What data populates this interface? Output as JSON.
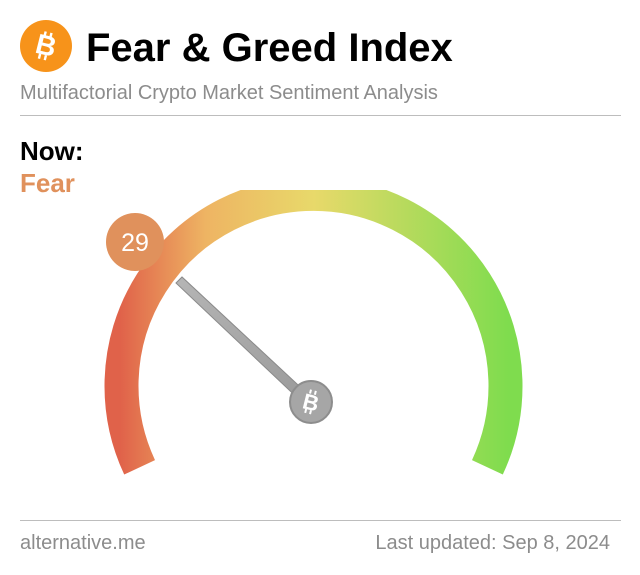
{
  "header": {
    "title": "Fear & Greed Index",
    "subtitle": "Multifactorial Crypto Market Sentiment Analysis",
    "logo_icon": "bitcoin-icon",
    "logo_color": "#f7931a"
  },
  "now": {
    "label": "Now:",
    "classification": "Fear",
    "value": "29",
    "color": "#e0915c"
  },
  "gauge": {
    "min": 0,
    "max": 100,
    "value": 29,
    "gradient": [
      "#e0624a",
      "#eeb463",
      "#e8d96a",
      "#7fdc4e"
    ],
    "needle_icon": "bitcoin-icon"
  },
  "footer": {
    "source": "alternative.me",
    "last_updated": "Last updated: Sep 8, 2024"
  }
}
